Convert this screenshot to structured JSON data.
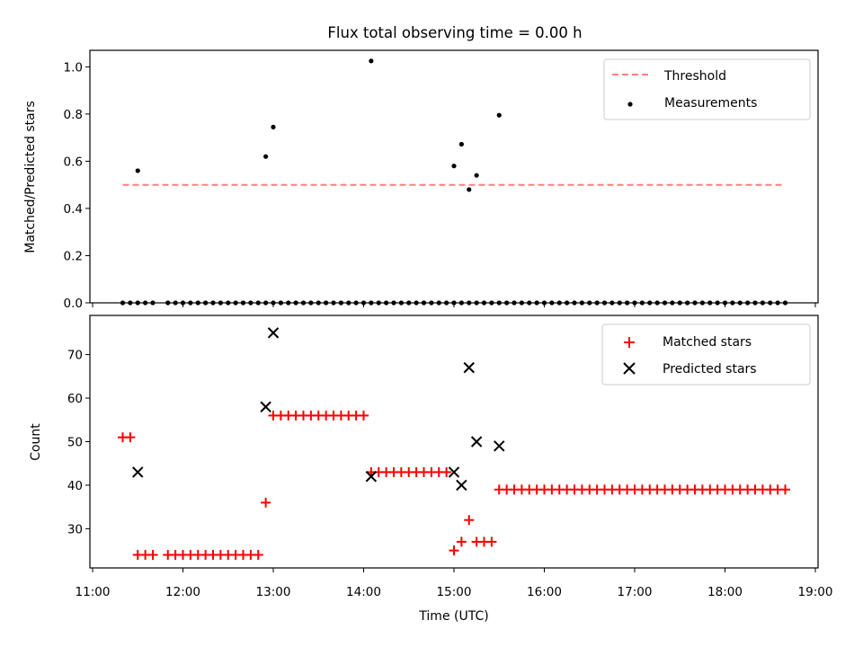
{
  "title": "Flux total observing time = 0.00 h",
  "colors": {
    "threshold": "#ff7f7f",
    "measurement": "#000000",
    "matched": "#ff0000",
    "predicted": "#000000"
  },
  "chart_data": [
    {
      "type": "scatter",
      "title": "Flux total observing time = 0.00 h",
      "ylabel": "Matched/Predicted stars",
      "xlabel": "",
      "ylim": [
        0,
        1.07
      ],
      "yticks": [
        "0.0",
        "0.2",
        "0.4",
        "0.6",
        "0.8",
        "1.0"
      ],
      "legend": {
        "placement": "top-right",
        "entries": [
          "Threshold",
          "Measurements"
        ]
      },
      "series": [
        {
          "name": "Threshold",
          "style": "dashed-line",
          "x": [
            "11:20",
            "18:40"
          ],
          "y": [
            0.5,
            0.5
          ]
        },
        {
          "name": "Measurements",
          "style": "dot",
          "x": [
            "11:20",
            "11:25",
            "11:30",
            "11:35",
            "11:40",
            "11:50",
            "11:55",
            "12:00",
            "12:05",
            "12:10",
            "12:15",
            "12:20",
            "12:25",
            "12:30",
            "12:35",
            "12:40",
            "12:45",
            "12:50",
            "12:55",
            "13:00",
            "13:05",
            "13:10",
            "13:15",
            "13:20",
            "13:25",
            "13:30",
            "13:35",
            "13:40",
            "13:45",
            "13:50",
            "13:55",
            "14:00",
            "14:05",
            "14:10",
            "14:15",
            "14:20",
            "14:25",
            "14:30",
            "14:35",
            "14:40",
            "14:45",
            "14:50",
            "14:55",
            "15:00",
            "15:05",
            "15:10",
            "15:15",
            "15:20",
            "15:25",
            "15:30",
            "15:35",
            "15:40",
            "15:45",
            "15:50",
            "15:55",
            "16:00",
            "16:05",
            "16:10",
            "16:15",
            "16:20",
            "16:25",
            "16:30",
            "16:35",
            "16:40",
            "16:45",
            "16:50",
            "16:55",
            "17:00",
            "17:05",
            "17:10",
            "17:15",
            "17:20",
            "17:25",
            "17:30",
            "17:35",
            "17:40",
            "17:45",
            "17:50",
            "17:55",
            "18:00",
            "18:05",
            "18:10",
            "18:15",
            "18:20",
            "18:25",
            "18:30",
            "18:35",
            "18:40",
            "11:30",
            "12:55",
            "13:00",
            "14:05",
            "15:00",
            "15:05",
            "15:10",
            "15:15",
            "15:30"
          ],
          "y": [
            0,
            0,
            0,
            0,
            0,
            0,
            0,
            0,
            0,
            0,
            0,
            0,
            0,
            0,
            0,
            0,
            0,
            0,
            0,
            0,
            0,
            0,
            0,
            0,
            0,
            0,
            0,
            0,
            0,
            0,
            0,
            0,
            0,
            0,
            0,
            0,
            0,
            0,
            0,
            0,
            0,
            0,
            0,
            0,
            0,
            0,
            0,
            0,
            0,
            0,
            0,
            0,
            0,
            0,
            0,
            0,
            0,
            0,
            0,
            0,
            0,
            0,
            0,
            0,
            0,
            0,
            0,
            0,
            0,
            0,
            0,
            0,
            0,
            0,
            0,
            0,
            0,
            0,
            0,
            0,
            0,
            0,
            0,
            0,
            0,
            0,
            0,
            0,
            0.56,
            0.62,
            0.745,
            1.025,
            0.58,
            0.672,
            0.48,
            0.54,
            0.795
          ]
        }
      ]
    },
    {
      "type": "scatter",
      "xlabel": "Time (UTC)",
      "ylabel": "Count",
      "ylim": [
        21,
        79
      ],
      "yticks": [
        "30",
        "40",
        "50",
        "60",
        "70"
      ],
      "xticks": [
        "11:00",
        "12:00",
        "13:00",
        "14:00",
        "15:00",
        "16:00",
        "17:00",
        "18:00",
        "19:00"
      ],
      "legend": {
        "placement": "top-right",
        "entries": [
          "Matched stars",
          "Predicted stars"
        ]
      },
      "series": [
        {
          "name": "Matched stars",
          "marker": "plus",
          "x": [
            "11:20",
            "11:25",
            "11:30",
            "11:35",
            "11:40",
            "11:50",
            "11:55",
            "12:00",
            "12:05",
            "12:10",
            "12:15",
            "12:20",
            "12:25",
            "12:30",
            "12:35",
            "12:40",
            "12:45",
            "12:50",
            "12:55",
            "13:00",
            "13:05",
            "13:10",
            "13:15",
            "13:20",
            "13:25",
            "13:30",
            "13:35",
            "13:40",
            "13:45",
            "13:50",
            "13:55",
            "14:00",
            "14:05",
            "14:10",
            "14:15",
            "14:20",
            "14:25",
            "14:30",
            "14:35",
            "14:40",
            "14:45",
            "14:50",
            "14:55",
            "15:00",
            "15:05",
            "15:10",
            "15:15",
            "15:20",
            "15:25",
            "15:30",
            "15:35",
            "15:40",
            "15:45",
            "15:50",
            "15:55",
            "16:00",
            "16:05",
            "16:10",
            "16:15",
            "16:20",
            "16:25",
            "16:30",
            "16:35",
            "16:40",
            "16:45",
            "16:50",
            "16:55",
            "17:00",
            "17:05",
            "17:10",
            "17:15",
            "17:20",
            "17:25",
            "17:30",
            "17:35",
            "17:40",
            "17:45",
            "17:50",
            "17:55",
            "18:00",
            "18:05",
            "18:10",
            "18:15",
            "18:20",
            "18:25",
            "18:30",
            "18:35",
            "18:40"
          ],
          "y": [
            51,
            51,
            24,
            24,
            24,
            24,
            24,
            24,
            24,
            24,
            24,
            24,
            24,
            24,
            24,
            24,
            24,
            24,
            36,
            56,
            56,
            56,
            56,
            56,
            56,
            56,
            56,
            56,
            56,
            56,
            56,
            56,
            43,
            43,
            43,
            43,
            43,
            43,
            43,
            43,
            43,
            43,
            43,
            25,
            27,
            32,
            27,
            27,
            27,
            39,
            39,
            39,
            39,
            39,
            39,
            39,
            39,
            39,
            39,
            39,
            39,
            39,
            39,
            39,
            39,
            39,
            39,
            39,
            39,
            39,
            39,
            39,
            39,
            39,
            39,
            39,
            39,
            39,
            39,
            39,
            39,
            39,
            39,
            39,
            39,
            39,
            39,
            39
          ]
        },
        {
          "name": "Predicted stars",
          "marker": "x",
          "x": [
            "11:30",
            "12:55",
            "13:00",
            "14:05",
            "15:00",
            "15:05",
            "15:10",
            "15:15",
            "15:30"
          ],
          "y": [
            43,
            58,
            75,
            42,
            43,
            40,
            67,
            50,
            49
          ]
        }
      ]
    }
  ]
}
